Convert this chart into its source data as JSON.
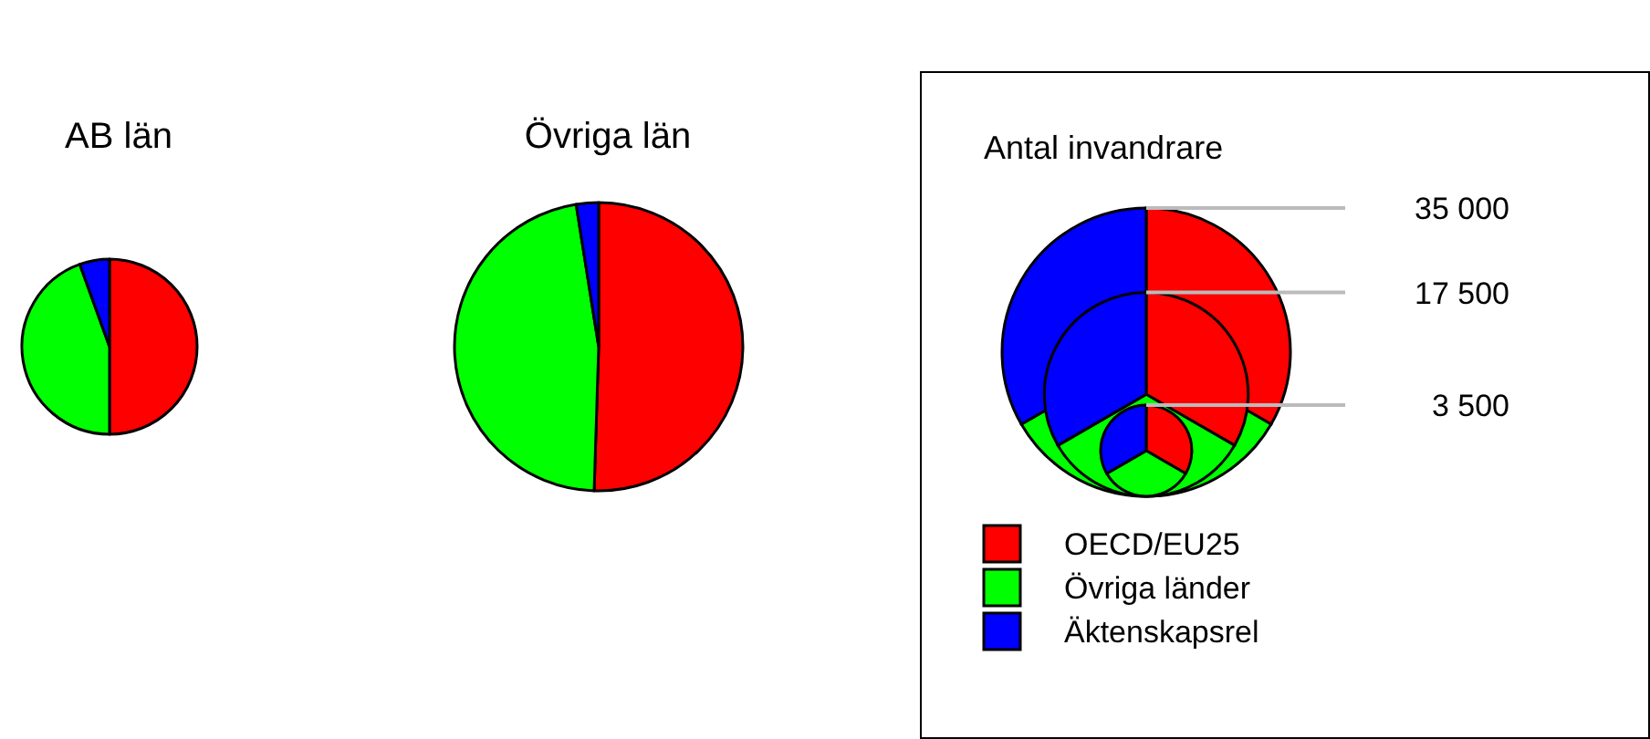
{
  "chart_data": [
    {
      "type": "pie",
      "title": "AB län",
      "categories": [
        null,
        null,
        null
      ],
      "values": [
        50,
        44.5,
        5.5
      ],
      "colors": [
        "#ff0000",
        "#00ff00",
        "#0000ff"
      ]
    },
    {
      "type": "pie",
      "title": "Övriga län",
      "categories": [
        null,
        null,
        null
      ],
      "values": [
        50.5,
        47,
        2.5
      ],
      "colors": [
        "#ff0000",
        "#00ff00",
        "#0000ff"
      ]
    },
    {
      "type": "other",
      "title": "Antal invandrare",
      "categories": [
        "OECD/EU25",
        "Övriga länder",
        "Äktenskapsrel"
      ],
      "colors": [
        "#ff0000",
        "#00ff00",
        "#0000ff"
      ],
      "annotations": [
        "35 000",
        "17 500",
        "3 500"
      ]
    }
  ]
}
